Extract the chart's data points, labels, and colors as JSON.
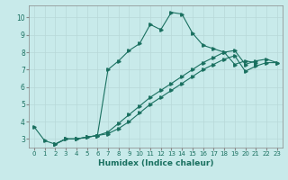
{
  "xlabel": "Humidex (Indice chaleur)",
  "xlim": [
    -0.5,
    23.5
  ],
  "ylim": [
    2.5,
    10.7
  ],
  "xticks": [
    0,
    1,
    2,
    3,
    4,
    5,
    6,
    7,
    8,
    9,
    10,
    11,
    12,
    13,
    14,
    15,
    16,
    17,
    18,
    19,
    20,
    21,
    22,
    23
  ],
  "yticks": [
    3,
    4,
    5,
    6,
    7,
    8,
    9,
    10
  ],
  "background_color": "#c8eaea",
  "grid_color": "#b8d8d8",
  "line_color": "#1a7060",
  "line1_x": [
    0,
    1,
    2,
    3,
    4,
    5,
    6,
    7,
    8,
    9,
    10,
    11,
    12,
    13,
    14,
    15,
    16,
    17,
    18,
    19,
    20,
    21
  ],
  "line1_y": [
    3.7,
    2.9,
    2.7,
    3.0,
    3.0,
    3.1,
    3.2,
    7.0,
    7.5,
    8.1,
    8.5,
    9.6,
    9.3,
    10.3,
    10.2,
    9.1,
    8.4,
    8.2,
    8.0,
    7.3,
    7.5,
    7.4
  ],
  "line2_x": [
    2,
    3,
    4,
    5,
    6,
    7,
    8,
    9,
    10,
    11,
    12,
    13,
    14,
    15,
    16,
    17,
    18,
    19,
    20,
    21,
    22,
    23
  ],
  "line2_y": [
    2.7,
    3.0,
    3.0,
    3.1,
    3.2,
    3.4,
    3.9,
    4.4,
    4.9,
    5.4,
    5.8,
    6.2,
    6.6,
    7.0,
    7.4,
    7.7,
    8.0,
    8.1,
    7.3,
    7.5,
    7.6,
    7.4
  ],
  "line3_x": [
    2,
    3,
    4,
    5,
    6,
    7,
    8,
    9,
    10,
    11,
    12,
    13,
    14,
    15,
    16,
    17,
    18,
    19,
    20,
    21,
    22,
    23
  ],
  "line3_y": [
    2.7,
    3.0,
    3.0,
    3.1,
    3.2,
    3.3,
    3.6,
    4.0,
    4.5,
    5.0,
    5.4,
    5.8,
    6.2,
    6.6,
    7.0,
    7.3,
    7.6,
    7.8,
    6.9,
    7.2,
    7.4,
    7.4
  ]
}
